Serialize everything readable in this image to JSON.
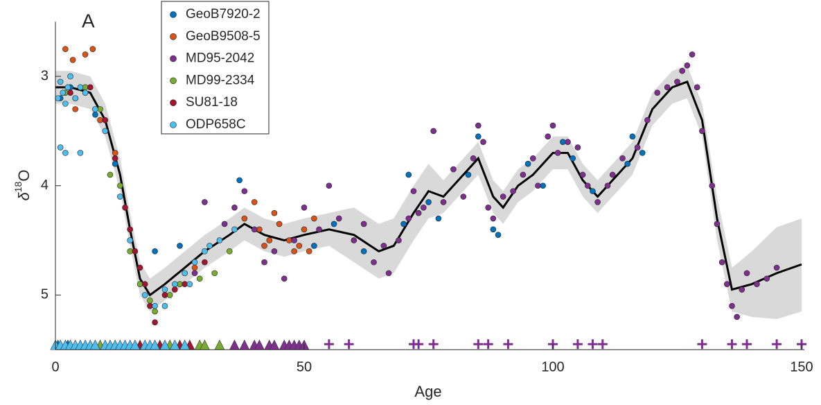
{
  "chart_data": {
    "type": "scatter",
    "panel_label": "A",
    "xlabel": "Age",
    "ylabel": [
      "δ",
      "18",
      "O"
    ],
    "xlim": [
      0,
      150
    ],
    "ylim": [
      2.5,
      5.5
    ],
    "y_reversed": true,
    "xticks": [
      0,
      50,
      100,
      150
    ],
    "yticks": [
      3,
      4,
      5
    ],
    "legend": "upper left",
    "envelope": {
      "color": "#d9d9d9",
      "line_color": "#000000",
      "x": [
        0,
        3,
        7,
        10,
        13,
        15,
        17,
        19,
        22,
        26,
        30,
        35,
        38,
        42,
        46,
        50,
        55,
        60,
        65,
        68,
        72,
        75,
        78,
        82,
        85,
        88,
        90,
        93,
        96,
        100,
        103,
        106,
        109,
        112,
        116,
        120,
        124,
        127,
        130,
        133,
        136,
        140,
        145,
        150
      ],
      "median": [
        3.1,
        3.1,
        3.15,
        3.4,
        3.9,
        4.4,
        4.85,
        5.0,
        4.9,
        4.75,
        4.6,
        4.45,
        4.35,
        4.45,
        4.5,
        4.45,
        4.4,
        4.45,
        4.6,
        4.55,
        4.25,
        4.05,
        4.1,
        3.9,
        3.75,
        4.1,
        4.2,
        4.0,
        3.9,
        3.7,
        3.7,
        3.95,
        4.1,
        3.95,
        3.75,
        3.3,
        3.1,
        3.05,
        3.4,
        4.3,
        4.95,
        4.9,
        4.8,
        4.72
      ],
      "lower": [
        2.95,
        2.95,
        3.0,
        3.25,
        3.75,
        4.25,
        4.7,
        4.85,
        4.75,
        4.6,
        4.45,
        4.3,
        4.2,
        4.3,
        4.35,
        4.3,
        4.25,
        4.2,
        4.35,
        4.3,
        4.0,
        3.8,
        3.95,
        3.75,
        3.6,
        3.95,
        4.05,
        3.85,
        3.75,
        3.55,
        3.55,
        3.8,
        3.95,
        3.8,
        3.6,
        3.15,
        2.95,
        2.9,
        3.25,
        4.1,
        4.75,
        4.6,
        4.38,
        4.3
      ],
      "upper": [
        3.25,
        3.25,
        3.3,
        3.55,
        4.05,
        4.55,
        5.0,
        5.15,
        5.05,
        4.9,
        4.75,
        4.6,
        4.5,
        4.6,
        4.65,
        4.6,
        4.55,
        4.7,
        4.85,
        4.8,
        4.5,
        4.3,
        4.25,
        4.05,
        3.9,
        4.25,
        4.35,
        4.15,
        4.05,
        3.85,
        3.85,
        4.1,
        4.25,
        4.1,
        3.9,
        3.45,
        3.25,
        3.2,
        3.55,
        4.5,
        5.15,
        5.2,
        5.22,
        5.15
      ]
    },
    "series": [
      {
        "name": "GeoB7920-2",
        "color": "#0072bd",
        "x": [
          1,
          3,
          8,
          12,
          20,
          25,
          37,
          52,
          56,
          62,
          70,
          71,
          75,
          77,
          83,
          85,
          88,
          89,
          95,
          98,
          102,
          104,
          108,
          115,
          116,
          118
        ],
        "values": [
          3.2,
          3.1,
          3.35,
          3.8,
          4.6,
          4.55,
          3.95,
          4.55,
          4.35,
          4.6,
          4.35,
          3.9,
          4.15,
          4.3,
          3.9,
          3.55,
          4.4,
          4.45,
          3.8,
          4.0,
          3.6,
          3.75,
          4.05,
          3.8,
          3.55,
          3.7
        ],
        "tie_points": [
          0.5,
          2.5
        ]
      },
      {
        "name": "GeoB9508-5",
        "color": "#d95319",
        "x": [
          2,
          3.5,
          6,
          7.5,
          4,
          9,
          12,
          26,
          28,
          38,
          40,
          41,
          43,
          45,
          47,
          48,
          50,
          52,
          42,
          44,
          49,
          51
        ],
        "values": [
          2.75,
          2.85,
          2.8,
          2.75,
          3.3,
          3.4,
          3.7,
          4.8,
          4.75,
          4.3,
          4.15,
          4.4,
          4.5,
          4.35,
          4.5,
          4.6,
          4.4,
          4.3,
          4.55,
          4.25,
          4.55,
          4.6
        ],
        "tie_points": []
      },
      {
        "name": "MD95-2042",
        "color": "#7e2f8e",
        "x": [
          28,
          30,
          34,
          36,
          38,
          40,
          42,
          44,
          46,
          48,
          50,
          53,
          55,
          57,
          60,
          62,
          64,
          66,
          67,
          69,
          71,
          72,
          73,
          74,
          76,
          78,
          80,
          82,
          84,
          85,
          86,
          87,
          88,
          90,
          92,
          94,
          96,
          97,
          99,
          100,
          101,
          103,
          105,
          106,
          107,
          109,
          111,
          112,
          114,
          117,
          119,
          121,
          123,
          125,
          126,
          127,
          128,
          129,
          130,
          132,
          133,
          134,
          135,
          136,
          137,
          138,
          139,
          141,
          143,
          145
        ],
        "values": [
          4.8,
          4.15,
          4.35,
          4.2,
          4.05,
          4.4,
          4.7,
          4.6,
          4.85,
          4.5,
          4.2,
          4.4,
          4.0,
          4.3,
          4.5,
          4.35,
          4.7,
          4.55,
          4.8,
          4.5,
          4.3,
          4.05,
          4.25,
          4.2,
          3.5,
          4.15,
          3.85,
          4.1,
          3.75,
          3.45,
          3.6,
          4.2,
          4.3,
          4.1,
          4.05,
          3.9,
          3.75,
          4.0,
          3.55,
          3.45,
          3.7,
          3.6,
          3.65,
          3.9,
          4.0,
          4.15,
          4.0,
          3.9,
          3.75,
          3.65,
          3.4,
          3.15,
          3.1,
          3.05,
          2.95,
          2.9,
          2.8,
          3.1,
          3.5,
          4.0,
          4.35,
          4.7,
          4.9,
          5.1,
          5.2,
          4.95,
          4.8,
          4.9,
          4.85,
          4.75
        ],
        "tie_points": [
          36,
          38,
          40,
          41,
          43,
          44,
          46,
          47,
          48,
          49,
          50
        ],
        "tie_points_plus": [
          55,
          59,
          72,
          73,
          76,
          85,
          87,
          91,
          100,
          105,
          108,
          110,
          130,
          136,
          139,
          145,
          150
        ]
      },
      {
        "name": "MD99-2334",
        "color": "#77ac30",
        "x": [
          2,
          4,
          6,
          9,
          11,
          13,
          15,
          17,
          19,
          20,
          23,
          25,
          29,
          32,
          35
        ],
        "values": [
          3.15,
          3.2,
          3.1,
          3.3,
          3.9,
          4.0,
          4.6,
          4.9,
          5.05,
          5.15,
          5.0,
          4.9,
          4.85,
          4.8,
          4.6
        ],
        "tie_points": [
          9,
          23,
          29,
          30,
          33
        ]
      },
      {
        "name": "SU81-18",
        "color": "#a2142f",
        "x": [
          3,
          7,
          10,
          12,
          14,
          15,
          16,
          17,
          18,
          19,
          20,
          22,
          24,
          26,
          30
        ],
        "values": [
          3.15,
          3.1,
          3.4,
          3.75,
          4.2,
          4.4,
          4.6,
          4.75,
          4.9,
          5.1,
          5.25,
          5.0,
          4.95,
          4.9,
          4.7
        ],
        "tie_points": [
          17,
          21,
          25,
          27
        ]
      },
      {
        "name": "ODP658C",
        "color": "#4dbeee",
        "x": [
          0.5,
          1,
          1.5,
          2,
          2.5,
          3,
          4,
          5,
          6,
          1,
          2,
          5,
          8,
          10,
          13,
          15,
          18,
          20,
          22,
          24,
          26,
          28,
          30,
          31,
          33,
          36,
          22,
          27
        ],
        "values": [
          3.2,
          3.05,
          3.15,
          3.25,
          3.1,
          3.0,
          3.2,
          3.1,
          3.15,
          3.65,
          3.7,
          3.7,
          3.3,
          3.5,
          4.1,
          4.5,
          5.0,
          5.1,
          4.95,
          4.9,
          4.8,
          4.7,
          4.6,
          4.55,
          4.5,
          4.4,
          5.1,
          4.9
        ],
        "tie_points": [
          0,
          1,
          2,
          3,
          4,
          5,
          6,
          7,
          8,
          10,
          11,
          12,
          13,
          14,
          15,
          16,
          18,
          19,
          20,
          22,
          24,
          26
        ]
      }
    ]
  }
}
